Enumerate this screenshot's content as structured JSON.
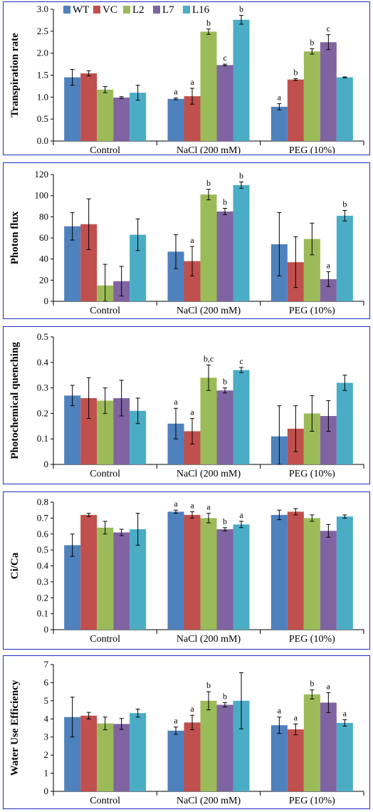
{
  "colors": {
    "WT": "#4f81bd",
    "VC": "#c0504d",
    "L2": "#9bbb59",
    "L7": "#8064a2",
    "L16": "#4bacc6",
    "border": "#1f2fc0"
  },
  "legend": [
    "WT",
    "VC",
    "L2",
    "L7",
    "L16"
  ],
  "chart_data": [
    {
      "type": "bar",
      "ylabel": "Transpiration rate",
      "categories": [
        "Control",
        "NaCl (200 mM)",
        "PEG (10%)"
      ],
      "ylim": [
        0,
        3.0
      ],
      "yticks": [
        "0.0",
        "0.5",
        "1.0",
        "1.5",
        "2.0",
        "2.5",
        "3.0"
      ],
      "series": [
        {
          "name": "WT",
          "values": [
            1.45,
            0.96,
            0.78
          ],
          "err": [
            0.18,
            0.02,
            0.07
          ],
          "labels": [
            "",
            "a",
            "a"
          ]
        },
        {
          "name": "VC",
          "values": [
            1.54,
            1.02,
            1.4
          ],
          "err": [
            0.06,
            0.18,
            0.02
          ],
          "labels": [
            "",
            "a",
            "b"
          ]
        },
        {
          "name": "L2",
          "values": [
            1.17,
            2.49,
            2.04
          ],
          "err": [
            0.07,
            0.06,
            0.06
          ],
          "labels": [
            "",
            "b",
            "b"
          ]
        },
        {
          "name": "L7",
          "values": [
            0.99,
            1.73,
            2.25
          ],
          "err": [
            0.02,
            0.02,
            0.17
          ],
          "labels": [
            "",
            "c",
            "c"
          ]
        },
        {
          "name": "L16",
          "values": [
            1.1,
            2.76,
            1.45
          ],
          "err": [
            0.17,
            0.1,
            0.01
          ],
          "labels": [
            "",
            "b",
            ""
          ]
        }
      ]
    },
    {
      "type": "bar",
      "ylabel": "Photon flux",
      "categories": [
        "Control",
        "NaCl (200 mM)",
        "PEG (10%)"
      ],
      "ylim": [
        0,
        120
      ],
      "yticks": [
        "0",
        "20",
        "40",
        "60",
        "80",
        "100",
        "120"
      ],
      "series": [
        {
          "name": "WT",
          "values": [
            71,
            47,
            54
          ],
          "err": [
            13,
            16,
            30
          ],
          "labels": [
            "",
            "",
            ""
          ]
        },
        {
          "name": "VC",
          "values": [
            73,
            38,
            37
          ],
          "err": [
            24,
            14,
            24
          ],
          "labels": [
            "",
            "a",
            ""
          ]
        },
        {
          "name": "L2",
          "values": [
            15,
            101,
            59
          ],
          "err": [
            20,
            5,
            15
          ],
          "labels": [
            "",
            "b",
            ""
          ]
        },
        {
          "name": "L7",
          "values": [
            19,
            85,
            21
          ],
          "err": [
            14,
            3,
            7
          ],
          "labels": [
            "",
            "b",
            "a"
          ]
        },
        {
          "name": "L16",
          "values": [
            63,
            110,
            81
          ],
          "err": [
            15,
            3,
            5
          ],
          "labels": [
            "",
            "b",
            "b"
          ]
        }
      ]
    },
    {
      "type": "bar",
      "ylabel": "Photochemical quenching",
      "categories": [
        "Control",
        "NaCl (200 mM)",
        "PEG (10%)"
      ],
      "ylim": [
        0,
        0.5
      ],
      "yticks": [
        "0",
        "0.1",
        "0.2",
        "0.3",
        "0.4",
        "0.5"
      ],
      "series": [
        {
          "name": "WT",
          "values": [
            0.27,
            0.16,
            0.11
          ],
          "err": [
            0.04,
            0.06,
            0.12
          ],
          "labels": [
            "",
            "a",
            ""
          ]
        },
        {
          "name": "VC",
          "values": [
            0.26,
            0.13,
            0.14
          ],
          "err": [
            0.08,
            0.05,
            0.09
          ],
          "labels": [
            "",
            "a",
            ""
          ]
        },
        {
          "name": "L2",
          "values": [
            0.25,
            0.34,
            0.2
          ],
          "err": [
            0.05,
            0.05,
            0.07
          ],
          "labels": [
            "",
            "b,c",
            ""
          ]
        },
        {
          "name": "L7",
          "values": [
            0.26,
            0.29,
            0.19
          ],
          "err": [
            0.07,
            0.01,
            0.06
          ],
          "labels": [
            "",
            "b",
            ""
          ]
        },
        {
          "name": "L16",
          "values": [
            0.21,
            0.37,
            0.32
          ],
          "err": [
            0.05,
            0.01,
            0.03
          ],
          "labels": [
            "",
            "c",
            ""
          ]
        }
      ]
    },
    {
      "type": "bar",
      "ylabel": "Ci/Ca",
      "categories": [
        "Control",
        "NaCl (200 mM)",
        "PEG (10%)"
      ],
      "ylim": [
        0,
        0.8
      ],
      "yticks": [
        "0",
        "0.1",
        "0.2",
        "0.3",
        "0.4",
        "0.5",
        "0.6",
        "0.7",
        "0.8"
      ],
      "series": [
        {
          "name": "WT",
          "values": [
            0.53,
            0.74,
            0.72
          ],
          "err": [
            0.07,
            0.01,
            0.03
          ],
          "labels": [
            "",
            "a",
            ""
          ]
        },
        {
          "name": "VC",
          "values": [
            0.72,
            0.72,
            0.74
          ],
          "err": [
            0.01,
            0.02,
            0.02
          ],
          "labels": [
            "",
            "a",
            ""
          ]
        },
        {
          "name": "L2",
          "values": [
            0.64,
            0.7,
            0.7
          ],
          "err": [
            0.04,
            0.03,
            0.02
          ],
          "labels": [
            "",
            "a",
            ""
          ]
        },
        {
          "name": "L7",
          "values": [
            0.61,
            0.63,
            0.62
          ],
          "err": [
            0.02,
            0.01,
            0.04
          ],
          "labels": [
            "",
            "b",
            ""
          ]
        },
        {
          "name": "L16",
          "values": [
            0.63,
            0.66,
            0.71
          ],
          "err": [
            0.1,
            0.02,
            0.01
          ],
          "labels": [
            "",
            "a",
            ""
          ]
        }
      ]
    },
    {
      "type": "bar",
      "ylabel": "Water Use Efficiency",
      "categories": [
        "Control",
        "NaCl (200 mM)",
        "PEG (10%)"
      ],
      "ylim": [
        0,
        7
      ],
      "yticks": [
        "0",
        "1",
        "2",
        "3",
        "4",
        "5",
        "6",
        "7"
      ],
      "series": [
        {
          "name": "WT",
          "values": [
            4.1,
            3.35,
            3.65
          ],
          "err": [
            1.1,
            0.2,
            0.45
          ],
          "labels": [
            "",
            "a",
            "a"
          ]
        },
        {
          "name": "VC",
          "values": [
            4.18,
            3.8,
            3.42
          ],
          "err": [
            0.18,
            0.4,
            0.3
          ],
          "labels": [
            "",
            "a",
            "a"
          ]
        },
        {
          "name": "L2",
          "values": [
            3.75,
            5.0,
            5.35
          ],
          "err": [
            0.35,
            0.5,
            0.25
          ],
          "labels": [
            "",
            "b",
            "b"
          ]
        },
        {
          "name": "L7",
          "values": [
            3.72,
            4.78,
            4.9
          ],
          "err": [
            0.3,
            0.12,
            0.55
          ],
          "labels": [
            "",
            "b",
            "a"
          ]
        },
        {
          "name": "L16",
          "values": [
            4.32,
            5.0,
            3.78
          ],
          "err": [
            0.22,
            1.55,
            0.18
          ],
          "labels": [
            "",
            "",
            "a"
          ]
        }
      ]
    }
  ]
}
